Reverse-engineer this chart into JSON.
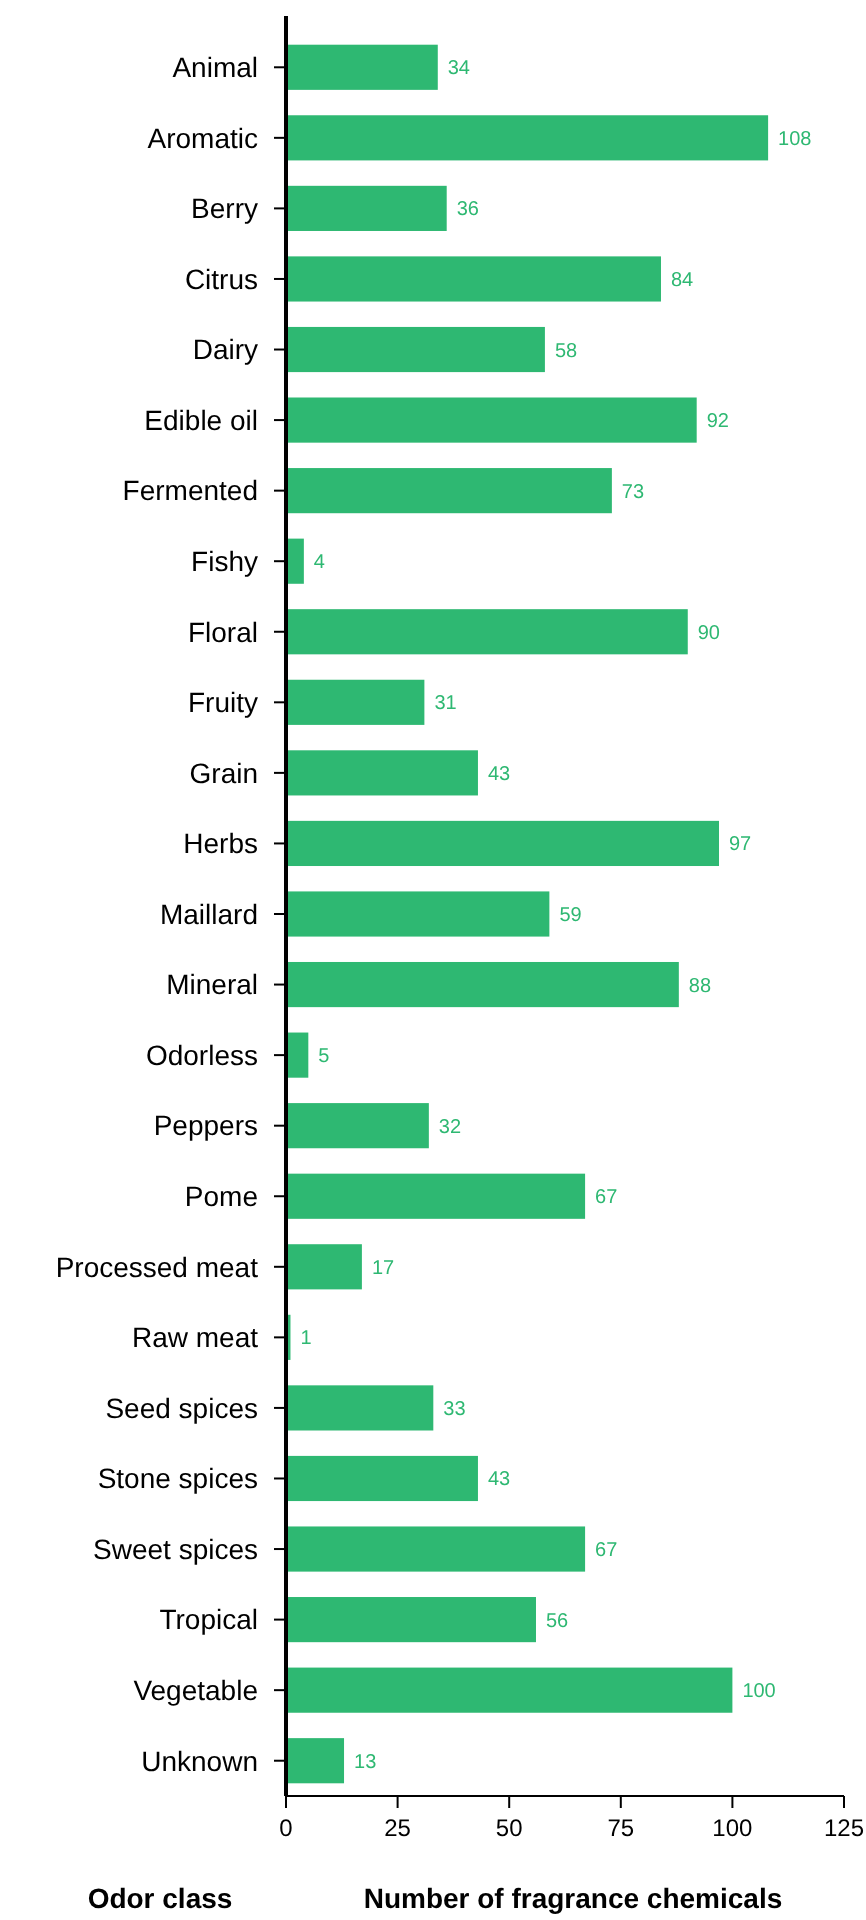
{
  "chart_data": {
    "type": "bar",
    "orientation": "horizontal",
    "xlabel": "Number of fragrance chemicals",
    "ylabel": "Odor class",
    "categories": [
      "Animal",
      "Aromatic",
      "Berry",
      "Citrus",
      "Dairy",
      "Edible oil",
      "Fermented",
      "Fishy",
      "Floral",
      "Fruity",
      "Grain",
      "Herbs",
      "Maillard",
      "Mineral",
      "Odorless",
      "Peppers",
      "Pome",
      "Processed meat",
      "Raw meat",
      "Seed spices",
      "Stone spices",
      "Sweet spices",
      "Tropical",
      "Vegetable",
      "Unknown"
    ],
    "values": [
      34,
      108,
      36,
      84,
      58,
      92,
      73,
      4,
      90,
      31,
      43,
      97,
      59,
      88,
      5,
      32,
      67,
      17,
      1,
      33,
      43,
      67,
      56,
      100,
      13
    ],
    "color": "#2eb872",
    "data_labels": true,
    "xlim": [
      0,
      125
    ],
    "xticks": [
      0,
      25,
      50,
      75,
      100,
      125
    ],
    "grid": false
  }
}
